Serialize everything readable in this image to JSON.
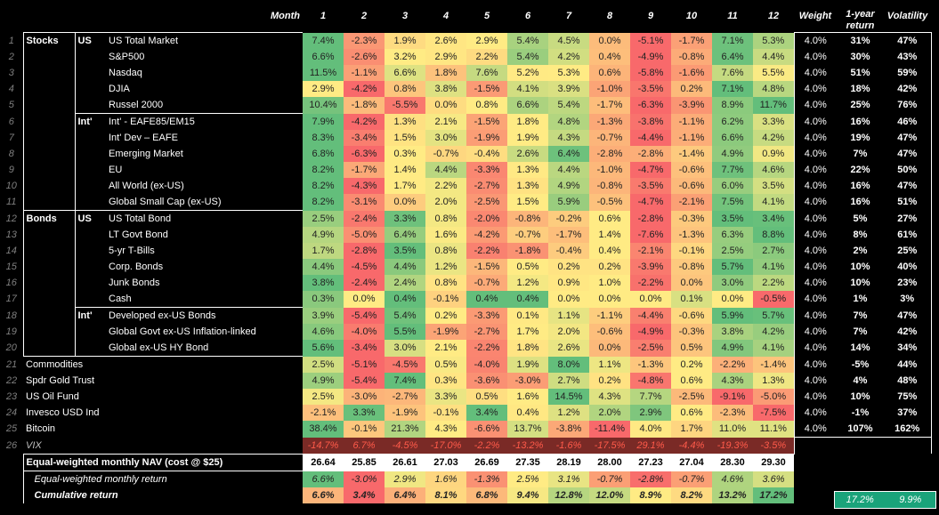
{
  "header": {
    "month_label": "Month",
    "months": [
      "1",
      "2",
      "3",
      "4",
      "5",
      "6",
      "7",
      "8",
      "9",
      "10",
      "11",
      "12"
    ],
    "weight_label": "Weight",
    "return_label_1": "1-year",
    "return_label_2": "return",
    "volatility_label": "Volatility"
  },
  "rows": [
    {
      "n": "1",
      "cat": "Stocks",
      "sub": "US",
      "name": "US Total Market",
      "vals": [
        "7.4%",
        "-2.3%",
        "1.9%",
        "2.6%",
        "2.9%",
        "5.4%",
        "4.5%",
        "0.0%",
        "-5.1%",
        "-1.7%",
        "7.1%",
        "5.3%"
      ],
      "w": "4.0%",
      "r": "31%",
      "v": "47%"
    },
    {
      "n": "2",
      "cat": "",
      "sub": "",
      "name": "S&P500",
      "vals": [
        "6.6%",
        "-2.6%",
        "3.2%",
        "2.9%",
        "2.2%",
        "5.4%",
        "4.2%",
        "0.4%",
        "-4.9%",
        "-0.8%",
        "6.4%",
        "4.4%"
      ],
      "w": "4.0%",
      "r": "30%",
      "v": "43%"
    },
    {
      "n": "3",
      "cat": "",
      "sub": "",
      "name": "Nasdaq",
      "vals": [
        "11.5%",
        "-1.1%",
        "6.6%",
        "1.8%",
        "7.6%",
        "5.2%",
        "5.3%",
        "0.6%",
        "-5.8%",
        "-1.6%",
        "7.6%",
        "5.5%"
      ],
      "w": "4.0%",
      "r": "51%",
      "v": "59%"
    },
    {
      "n": "4",
      "cat": "",
      "sub": "",
      "name": "DJIA",
      "vals": [
        "2.9%",
        "-4.2%",
        "0.8%",
        "3.8%",
        "-1.5%",
        "4.1%",
        "3.9%",
        "-1.0%",
        "-3.5%",
        "0.2%",
        "7.1%",
        "4.8%"
      ],
      "w": "4.0%",
      "r": "18%",
      "v": "42%"
    },
    {
      "n": "5",
      "cat": "",
      "sub": "",
      "name": "Russel 2000",
      "vals": [
        "10.4%",
        "-1.8%",
        "-5.5%",
        "0.0%",
        "0.8%",
        "6.6%",
        "5.4%",
        "-1.7%",
        "-6.3%",
        "-3.9%",
        "8.9%",
        "11.7%"
      ],
      "w": "4.0%",
      "r": "25%",
      "v": "76%"
    },
    {
      "n": "6",
      "cat": "",
      "sub": "Int'",
      "name": "Int' - EAFE85/EM15",
      "vals": [
        "7.9%",
        "-4.2%",
        "1.3%",
        "2.1%",
        "-1.5%",
        "1.8%",
        "4.8%",
        "-1.3%",
        "-3.8%",
        "-1.1%",
        "6.2%",
        "3.3%"
      ],
      "w": "4.0%",
      "r": "16%",
      "v": "46%"
    },
    {
      "n": "7",
      "cat": "",
      "sub": "",
      "name": "Int' Dev – EAFE",
      "vals": [
        "8.3%",
        "-3.4%",
        "1.5%",
        "3.0%",
        "-1.9%",
        "1.9%",
        "4.3%",
        "-0.7%",
        "-4.4%",
        "-1.1%",
        "6.6%",
        "4.2%"
      ],
      "w": "4.0%",
      "r": "19%",
      "v": "47%"
    },
    {
      "n": "8",
      "cat": "",
      "sub": "",
      "name": "Emerging Market",
      "vals": [
        "6.8%",
        "-6.3%",
        "0.3%",
        "-0.7%",
        "-0.4%",
        "2.6%",
        "6.4%",
        "-2.8%",
        "-2.8%",
        "-1.4%",
        "4.9%",
        "0.9%"
      ],
      "w": "4.0%",
      "r": "7%",
      "v": "47%"
    },
    {
      "n": "9",
      "cat": "",
      "sub": "",
      "name": "EU",
      "vals": [
        "8.2%",
        "-1.7%",
        "1.4%",
        "4.4%",
        "-3.3%",
        "1.3%",
        "4.4%",
        "-1.0%",
        "-4.7%",
        "-0.6%",
        "7.7%",
        "4.6%"
      ],
      "w": "4.0%",
      "r": "22%",
      "v": "50%"
    },
    {
      "n": "10",
      "cat": "",
      "sub": "",
      "name": "All World (ex-US)",
      "vals": [
        "8.2%",
        "-4.3%",
        "1.7%",
        "2.2%",
        "-2.7%",
        "1.3%",
        "4.9%",
        "-0.8%",
        "-3.5%",
        "-0.6%",
        "6.0%",
        "3.5%"
      ],
      "w": "4.0%",
      "r": "16%",
      "v": "47%"
    },
    {
      "n": "11",
      "cat": "",
      "sub": "",
      "name": "Global Small Cap (ex-US)",
      "vals": [
        "8.2%",
        "-3.1%",
        "0.0%",
        "2.0%",
        "-2.5%",
        "1.5%",
        "5.9%",
        "-0.5%",
        "-4.7%",
        "-2.1%",
        "7.5%",
        "4.1%"
      ],
      "w": "4.0%",
      "r": "16%",
      "v": "51%"
    },
    {
      "n": "12",
      "cat": "Bonds",
      "sub": "US",
      "name": "US Total Bond",
      "vals": [
        "2.5%",
        "-2.4%",
        "3.3%",
        "0.8%",
        "-2.0%",
        "-0.8%",
        "-0.2%",
        "0.6%",
        "-2.8%",
        "-0.3%",
        "3.5%",
        "3.4%"
      ],
      "w": "4.0%",
      "r": "5%",
      "v": "27%"
    },
    {
      "n": "13",
      "cat": "",
      "sub": "",
      "name": "LT Govt Bond",
      "vals": [
        "4.9%",
        "-5.0%",
        "6.4%",
        "1.6%",
        "-4.2%",
        "-0.7%",
        "-1.7%",
        "1.4%",
        "-7.6%",
        "-1.3%",
        "6.3%",
        "8.8%"
      ],
      "w": "4.0%",
      "r": "8%",
      "v": "61%"
    },
    {
      "n": "14",
      "cat": "",
      "sub": "",
      "name": "5-yr T-Bills",
      "vals": [
        "1.7%",
        "-2.8%",
        "3.5%",
        "0.8%",
        "-2.2%",
        "-1.8%",
        "-0.4%",
        "0.4%",
        "-2.1%",
        "-0.1%",
        "2.5%",
        "2.7%"
      ],
      "w": "4.0%",
      "r": "2%",
      "v": "25%"
    },
    {
      "n": "15",
      "cat": "",
      "sub": "",
      "name": "Corp. Bonds",
      "vals": [
        "4.4%",
        "-4.5%",
        "4.4%",
        "1.2%",
        "-1.5%",
        "0.5%",
        "0.2%",
        "0.2%",
        "-3.9%",
        "-0.8%",
        "5.7%",
        "4.1%"
      ],
      "w": "4.0%",
      "r": "10%",
      "v": "40%"
    },
    {
      "n": "16",
      "cat": "",
      "sub": "",
      "name": "Junk Bonds",
      "vals": [
        "3.8%",
        "-2.4%",
        "2.4%",
        "0.8%",
        "-0.7%",
        "1.2%",
        "0.9%",
        "1.0%",
        "-2.2%",
        "0.0%",
        "3.0%",
        "2.2%"
      ],
      "w": "4.0%",
      "r": "10%",
      "v": "23%"
    },
    {
      "n": "17",
      "cat": "",
      "sub": "",
      "name": "Cash",
      "vals": [
        "0.3%",
        "0.0%",
        "0.4%",
        "-0.1%",
        "0.4%",
        "0.4%",
        "0.0%",
        "0.0%",
        "0.0%",
        "0.1%",
        "0.0%",
        "-0.5%"
      ],
      "w": "4.0%",
      "r": "1%",
      "v": "3%"
    },
    {
      "n": "18",
      "cat": "",
      "sub": "Int'",
      "name": "Developed ex-US Bonds",
      "vals": [
        "3.9%",
        "-5.4%",
        "5.4%",
        "0.2%",
        "-3.3%",
        "0.1%",
        "1.1%",
        "-1.1%",
        "-4.4%",
        "-0.6%",
        "5.9%",
        "5.7%"
      ],
      "w": "4.0%",
      "r": "7%",
      "v": "47%"
    },
    {
      "n": "19",
      "cat": "",
      "sub": "",
      "name": "Global Govt ex-US Inflation-linked",
      "vals": [
        "4.6%",
        "-4.0%",
        "5.5%",
        "-1.9%",
        "-2.7%",
        "1.7%",
        "2.0%",
        "-0.6%",
        "-4.9%",
        "-0.3%",
        "3.8%",
        "4.2%"
      ],
      "w": "4.0%",
      "r": "7%",
      "v": "42%"
    },
    {
      "n": "20",
      "cat": "",
      "sub": "",
      "name": "Global ex-US HY Bond",
      "vals": [
        "5.6%",
        "-3.4%",
        "3.0%",
        "2.1%",
        "-2.2%",
        "1.8%",
        "2.6%",
        "0.0%",
        "-2.5%",
        "0.5%",
        "4.9%",
        "4.1%"
      ],
      "w": "4.0%",
      "r": "14%",
      "v": "34%"
    },
    {
      "n": "21",
      "cat": "Commodities",
      "sub": "",
      "name": "",
      "vals": [
        "2.5%",
        "-5.1%",
        "-4.5%",
        "0.5%",
        "-4.0%",
        "1.9%",
        "8.0%",
        "1.1%",
        "-1.3%",
        "0.2%",
        "-2.2%",
        "-1.4%"
      ],
      "w": "4.0%",
      "r": "-5%",
      "v": "44%"
    },
    {
      "n": "22",
      "cat": "Spdr Gold Trust",
      "sub": "",
      "name": "",
      "vals": [
        "4.9%",
        "-5.4%",
        "7.4%",
        "0.3%",
        "-3.6%",
        "-3.0%",
        "2.7%",
        "0.2%",
        "-4.8%",
        "0.6%",
        "4.3%",
        "1.3%"
      ],
      "w": "4.0%",
      "r": "4%",
      "v": "48%"
    },
    {
      "n": "23",
      "cat": "US Oil Fund",
      "sub": "",
      "name": "",
      "vals": [
        "2.5%",
        "-3.0%",
        "-2.7%",
        "3.3%",
        "0.5%",
        "1.6%",
        "14.5%",
        "4.3%",
        "7.7%",
        "-2.5%",
        "-9.1%",
        "-5.0%"
      ],
      "w": "4.0%",
      "r": "10%",
      "v": "75%"
    },
    {
      "n": "24",
      "cat": "Invesco USD Ind",
      "sub": "",
      "name": "",
      "vals": [
        "-2.1%",
        "3.3%",
        "-1.9%",
        "-0.1%",
        "3.4%",
        "0.4%",
        "1.2%",
        "2.0%",
        "2.9%",
        "0.6%",
        "-2.3%",
        "-7.5%"
      ],
      "w": "4.0%",
      "r": "-1%",
      "v": "37%"
    },
    {
      "n": "25",
      "cat": "Bitcoin",
      "sub": "",
      "name": "",
      "vals": [
        "38.4%",
        "-0.1%",
        "21.3%",
        "4.3%",
        "-6.6%",
        "13.7%",
        "-3.8%",
        "-11.4%",
        "4.0%",
        "1.7%",
        "11.0%",
        "11.1%"
      ],
      "w": "4.0%",
      "r": "107%",
      "v": "162%"
    },
    {
      "n": "26",
      "cat": "VIX",
      "sub": "",
      "name": "",
      "vals": [
        "-14.7%",
        "6.7%",
        "-4.5%",
        "-17.0%",
        "-2.2%",
        "-13.2%",
        "-1.6%",
        "-17.5%",
        "29.1%",
        "-4.4%",
        "-19.3%",
        "-3.5%"
      ],
      "w": "",
      "r": "",
      "v": ""
    }
  ],
  "nav": {
    "label": "Equal-weighted monthly NAV (cost @ $25)",
    "vals": [
      "26.64",
      "25.85",
      "26.61",
      "27.03",
      "26.69",
      "27.35",
      "28.19",
      "28.00",
      "27.23",
      "27.04",
      "28.30",
      "29.30"
    ]
  },
  "eq_return": {
    "label": "Equal-weighted monthly return",
    "vals": [
      "6.6%",
      "-3.0%",
      "2.9%",
      "1.6%",
      "-1.3%",
      "2.5%",
      "3.1%",
      "-0.7%",
      "-2.8%",
      "-0.7%",
      "4.6%",
      "3.6%"
    ]
  },
  "cum_return": {
    "label": "Cumulative return",
    "vals": [
      "6.6%",
      "3.4%",
      "6.4%",
      "8.1%",
      "6.8%",
      "9.4%",
      "12.8%",
      "12.0%",
      "8.9%",
      "8.2%",
      "13.2%",
      "17.2%"
    ]
  },
  "summary": {
    "return": "17.2%",
    "volatility": "9.9%"
  },
  "colors": {
    "green": "#63be7b",
    "yellow": "#ffeb84",
    "red": "#f8696b",
    "vix_bg": "#7a2a26",
    "vix_text": "#ff5a4a",
    "summary_bg": "#1aa37a"
  }
}
